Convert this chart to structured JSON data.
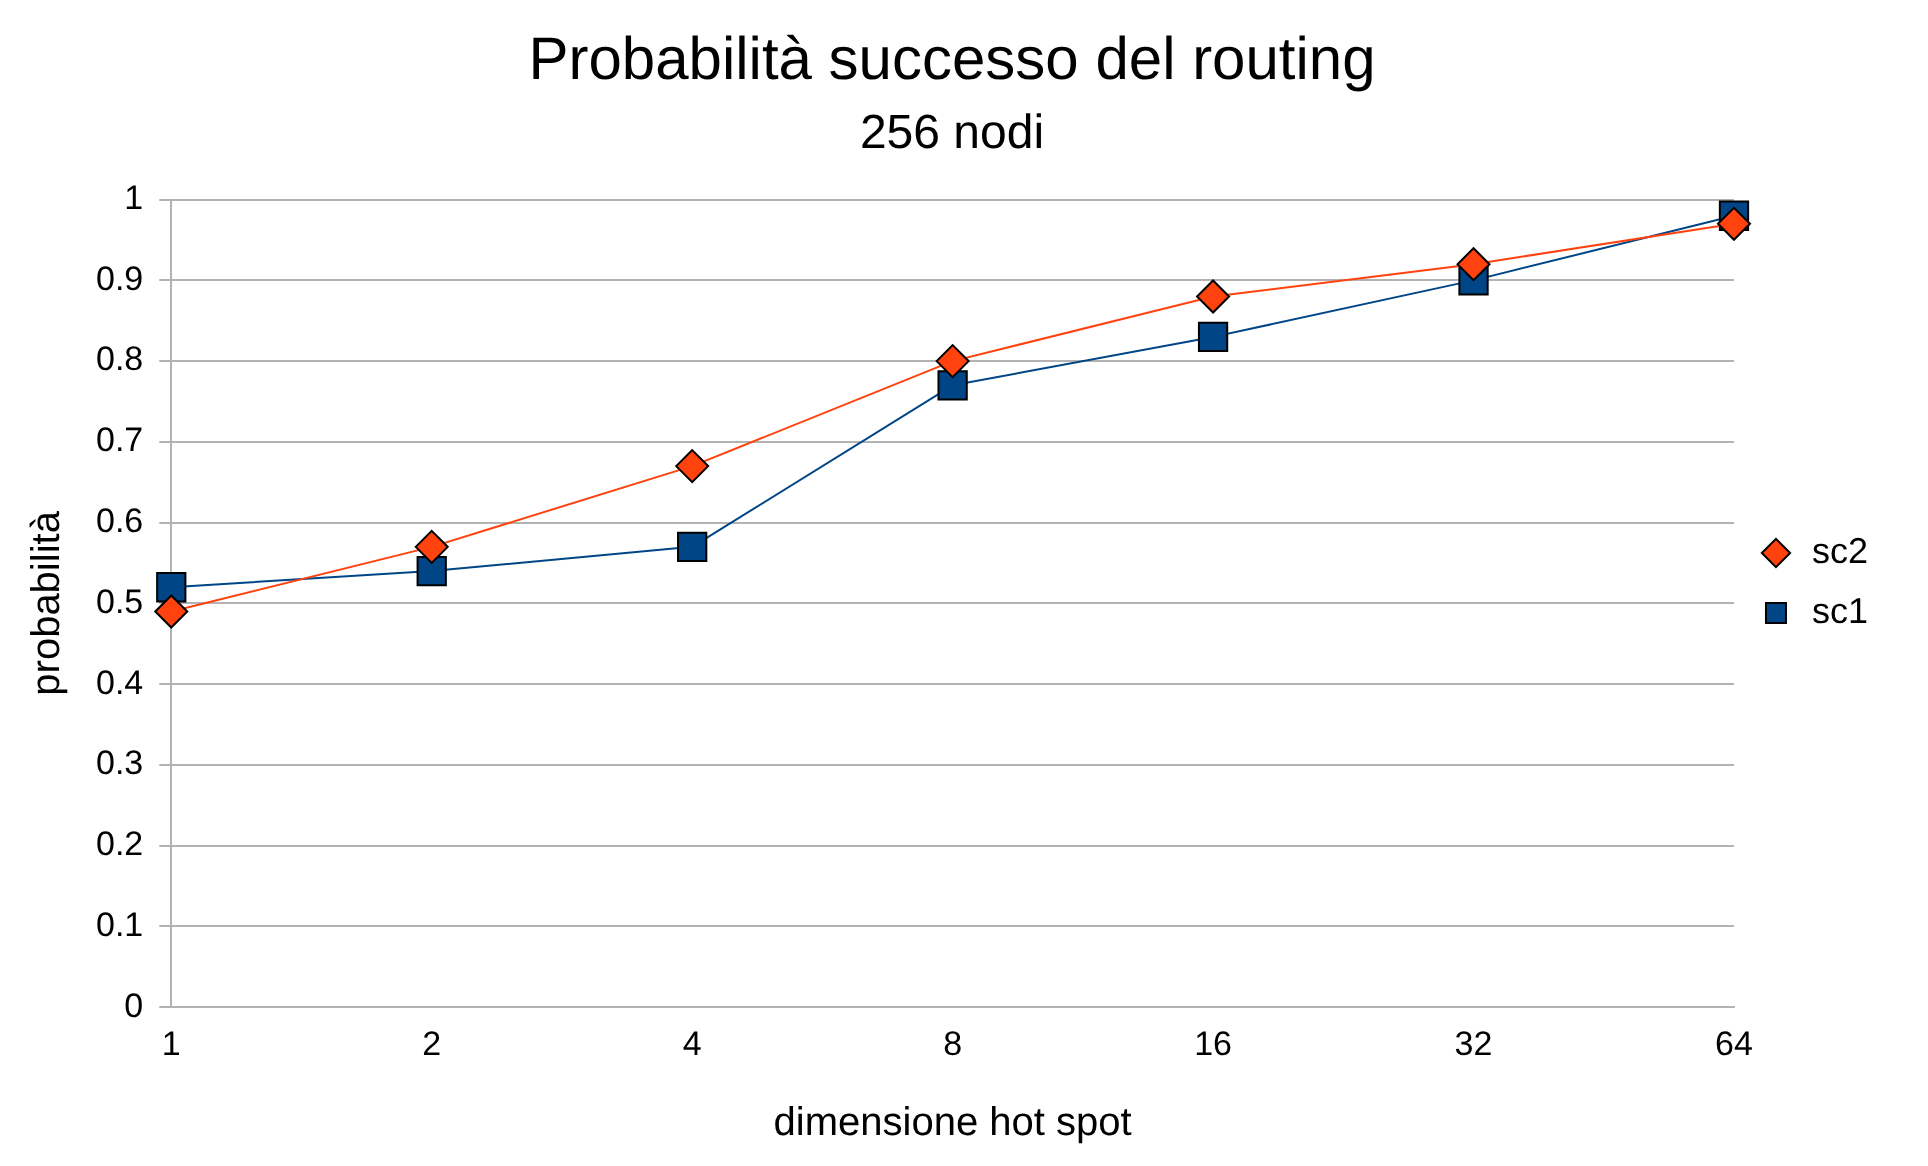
{
  "chart_data": {
    "type": "line",
    "title": "Probabilità successo del routing",
    "subtitle": "256 nodi",
    "xlabel": "dimensione hot spot",
    "ylabel": "probabilità",
    "categories": [
      "1",
      "2",
      "4",
      "8",
      "16",
      "32",
      "64"
    ],
    "series": [
      {
        "name": "sc1",
        "color": "#004586",
        "marker": "square",
        "values": [
          0.52,
          0.54,
          0.57,
          0.77,
          0.83,
          0.9,
          0.98
        ]
      },
      {
        "name": "sc2",
        "color": "#ff420e",
        "marker": "diamond",
        "values": [
          0.49,
          0.57,
          0.67,
          0.8,
          0.88,
          0.92,
          0.97
        ]
      }
    ],
    "ylim": [
      0,
      1
    ],
    "yticks": [
      0,
      0.1,
      0.2,
      0.3,
      0.4,
      0.5,
      0.6,
      0.7,
      0.8,
      0.9,
      1
    ],
    "grid": "y",
    "legend": "right",
    "line_style": "solid"
  }
}
